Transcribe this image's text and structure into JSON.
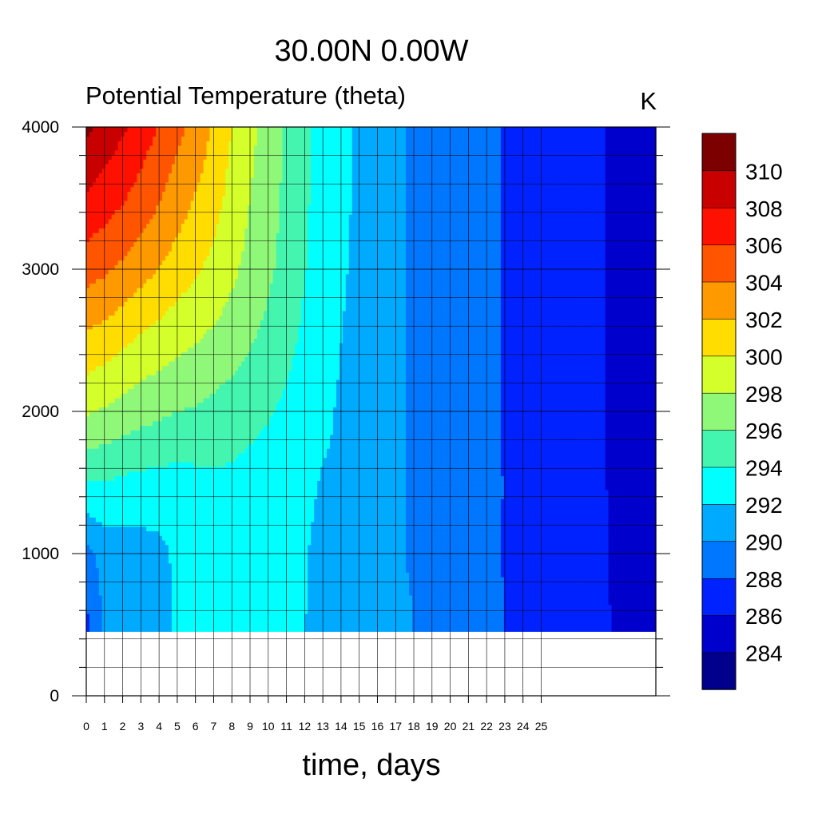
{
  "chart_data": {
    "type": "heatmap",
    "title": "30.00N  0.00W",
    "subtitle": "Potential Temperature (theta)",
    "units": "K",
    "xlabel": "time, days",
    "ylabel": "",
    "xlim": [
      0,
      31.3
    ],
    "ylim": [
      0,
      4000
    ],
    "x_ticks": [
      0,
      1,
      2,
      3,
      4,
      5,
      6,
      7,
      8,
      9,
      10,
      11,
      12,
      13,
      14,
      15,
      16,
      17,
      18,
      19,
      20,
      21,
      22,
      23,
      24,
      25
    ],
    "y_ticks": [
      0,
      1000,
      2000,
      3000,
      4000
    ],
    "data_bottom": 450,
    "grid": true,
    "colorbar": {
      "position": "right",
      "levels": [
        284,
        286,
        288,
        290,
        292,
        294,
        296,
        298,
        300,
        302,
        304,
        306,
        308,
        310
      ],
      "colors": [
        "#00008c",
        "#0000cd",
        "#0022ff",
        "#0077ff",
        "#00aaff",
        "#00ffff",
        "#44f5b0",
        "#90f878",
        "#d4ff2a",
        "#ffdd00",
        "#ff9900",
        "#ff5500",
        "#ff1100",
        "#c80000",
        "#7d0000"
      ]
    },
    "theta_at_heights_m": [
      450,
      1000,
      1500,
      2000,
      2500,
      3000,
      3500,
      4000
    ],
    "x_days": [
      0,
      1,
      2,
      3,
      4,
      5,
      6,
      7,
      8,
      9,
      10,
      11,
      12,
      13,
      14,
      15,
      16,
      17,
      18,
      19,
      20,
      21,
      22,
      23,
      24,
      25,
      26,
      27,
      28,
      29,
      30,
      31.3
    ],
    "theta": [
      [
        287.3,
        289.4,
        294.0,
        298.2,
        301.6,
        304.8,
        307.8,
        310.5
      ],
      [
        290.3,
        290.7,
        294.0,
        297.8,
        301.1,
        304.3,
        307.1,
        309.2
      ],
      [
        290.7,
        291.0,
        293.6,
        297.2,
        300.4,
        303.6,
        306.2,
        308.3
      ],
      [
        291.0,
        291.2,
        293.4,
        296.7,
        299.7,
        302.8,
        305.2,
        307.2
      ],
      [
        291.4,
        291.4,
        293.3,
        296.4,
        299.2,
        301.9,
        304.2,
        305.8
      ],
      [
        292.3,
        292.4,
        293.2,
        296.0,
        298.6,
        301.1,
        303.0,
        304.6
      ],
      [
        293.4,
        293.2,
        293.4,
        295.8,
        298.1,
        300.3,
        301.9,
        303.4
      ],
      [
        293.8,
        293.5,
        293.6,
        295.4,
        297.6,
        299.4,
        300.8,
        301.7
      ],
      [
        293.8,
        293.6,
        293.6,
        295.0,
        297.0,
        298.4,
        299.3,
        300.0
      ],
      [
        293.0,
        293.2,
        293.3,
        294.6,
        296.2,
        297.4,
        298.0,
        298.6
      ],
      [
        292.8,
        292.8,
        293.0,
        294.2,
        295.4,
        296.4,
        296.8,
        297.1
      ],
      [
        292.3,
        292.5,
        292.8,
        293.6,
        294.6,
        295.3,
        295.6,
        295.7
      ],
      [
        292.0,
        292.1,
        292.3,
        293.0,
        293.6,
        294.1,
        294.3,
        294.4
      ],
      [
        291.8,
        291.6,
        291.9,
        292.3,
        292.7,
        293.1,
        293.2,
        293.3
      ],
      [
        291.6,
        291.4,
        291.8,
        291.8,
        292.0,
        292.3,
        292.5,
        292.4
      ],
      [
        291.4,
        291.1,
        291.2,
        291.2,
        291.3,
        291.5,
        291.6,
        291.8
      ],
      [
        291.0,
        290.6,
        290.6,
        290.6,
        290.7,
        290.8,
        290.9,
        290.9
      ],
      [
        290.6,
        290.2,
        290.2,
        290.2,
        290.2,
        290.2,
        290.2,
        290.2
      ],
      [
        290.0,
        289.8,
        289.8,
        289.8,
        289.8,
        289.8,
        289.8,
        289.8
      ],
      [
        289.6,
        289.6,
        289.6,
        289.6,
        289.6,
        289.6,
        289.6,
        289.6
      ],
      [
        289.2,
        289.2,
        289.3,
        289.3,
        289.3,
        289.3,
        289.3,
        289.3
      ],
      [
        288.7,
        288.9,
        289.0,
        289.0,
        289.0,
        289.0,
        289.0,
        289.0
      ],
      [
        288.4,
        288.5,
        288.7,
        288.8,
        288.8,
        288.8,
        288.8,
        288.8
      ],
      [
        288.0,
        287.9,
        287.9,
        287.8,
        287.8,
        287.8,
        287.8,
        287.8
      ],
      [
        287.7,
        287.6,
        287.6,
        287.6,
        287.6,
        287.6,
        287.6,
        287.6
      ],
      [
        287.4,
        287.4,
        287.4,
        287.4,
        287.4,
        287.4,
        287.4,
        287.4
      ],
      [
        287.2,
        287.2,
        287.2,
        287.2,
        287.2,
        287.2,
        287.2,
        287.2
      ],
      [
        287.0,
        287.0,
        287.0,
        287.0,
        287.0,
        287.0,
        287.0,
        287.0
      ],
      [
        286.6,
        286.6,
        286.6,
        286.6,
        286.6,
        286.6,
        286.6,
        286.6
      ],
      [
        285.9,
        285.7,
        285.6,
        285.6,
        285.6,
        285.6,
        285.6,
        285.6
      ],
      [
        285.7,
        285.5,
        285.5,
        285.5,
        285.5,
        285.5,
        285.5,
        285.5
      ],
      [
        285.3,
        285.5,
        285.5,
        285.5,
        285.5,
        285.5,
        285.5,
        285.5
      ]
    ]
  }
}
